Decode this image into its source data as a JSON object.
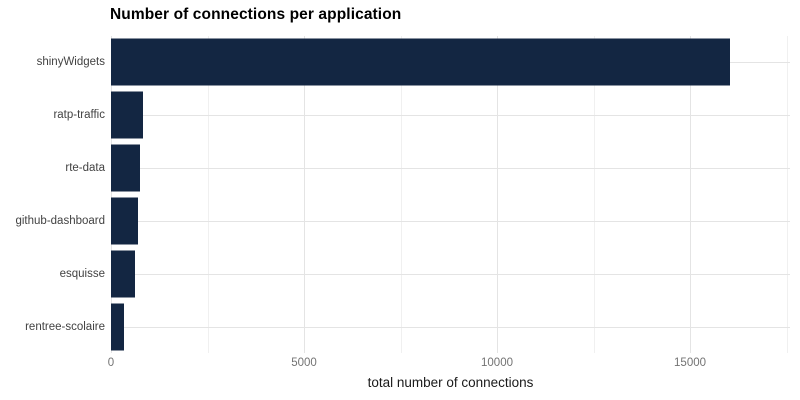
{
  "chart_data": {
    "type": "bar",
    "orientation": "horizontal",
    "title": "Number of connections per application",
    "xlabel": "total number of connections",
    "ylabel": "",
    "categories": [
      "shinyWidgets",
      "ratp-traffic",
      "rte-data",
      "github-dashboard",
      "esquisse",
      "rentree-scolaire"
    ],
    "values": [
      16040,
      820,
      750,
      690,
      620,
      345
    ],
    "xlim": [
      0,
      17590
    ],
    "x_major_ticks": [
      0,
      5000,
      10000,
      15000
    ],
    "x_tick_labels": [
      "0",
      "5000",
      "10000",
      "15000"
    ],
    "x_minor_gridlines": [
      2500,
      7500,
      12500,
      17500
    ],
    "grid": "vertical major+minor, horizontal major at category centers",
    "legend": false
  },
  "colors": {
    "background": "#ffffff",
    "bar": "#132642",
    "grid_major": "#e4e4e4",
    "grid_minor": "#f0f0f0",
    "title_text": "#000000",
    "axis_title_text": "#1a1a1a",
    "category_label_text": "#424242",
    "tick_label_text": "#737373"
  }
}
